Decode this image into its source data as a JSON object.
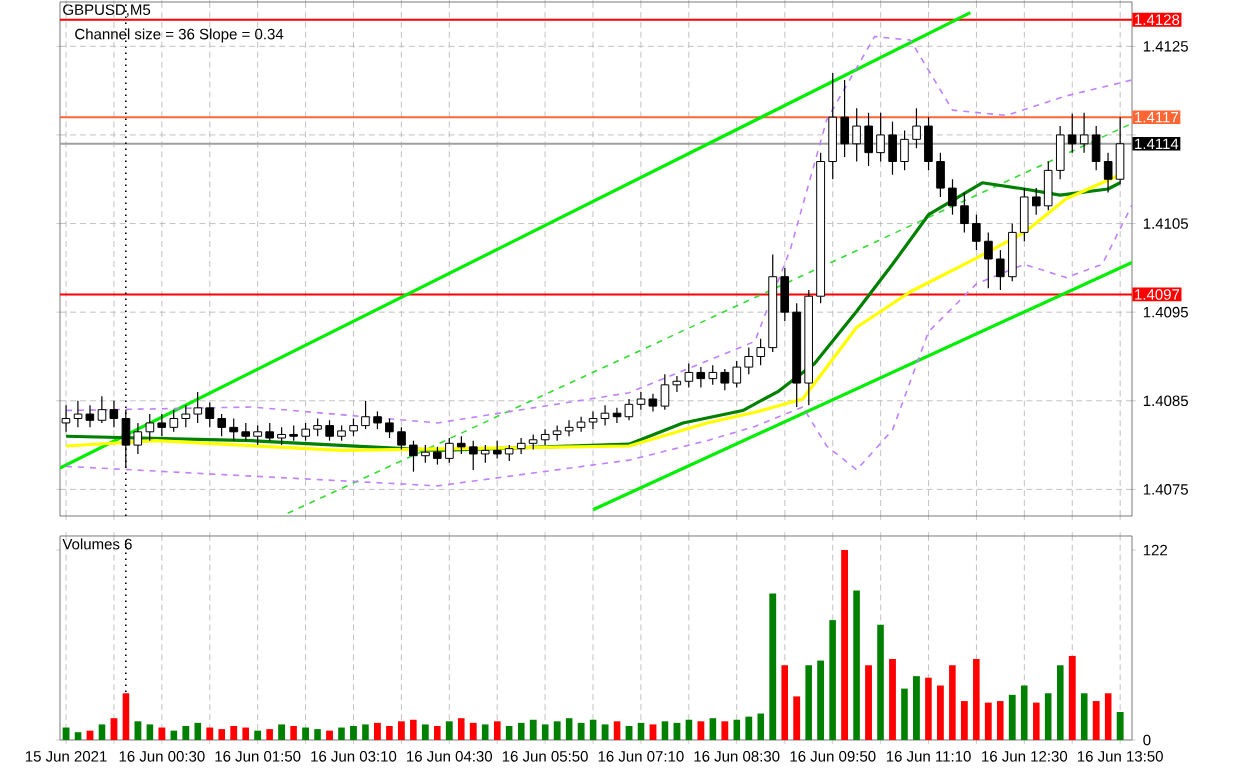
{
  "chart_data": [
    {
      "type": "candlestick",
      "title": "GBPUSD,M5",
      "subtitle": "Channel size = 36 Slope = 0.34",
      "tick_labels": "y",
      "grid": true,
      "xlim": [
        "2021-06-15T23:05",
        "2021-06-16T14:00"
      ],
      "xticks": [
        {
          "value": "2021-06-15T23:10",
          "label": null
        },
        {
          "value": "2021-06-15T23:50",
          "label": null
        },
        {
          "value": "2021-06-16T00:30",
          "label": null
        },
        {
          "value": "2021-06-16T01:10",
          "label": null
        },
        {
          "value": "2021-06-16T01:50",
          "label": null
        },
        {
          "value": "2021-06-16T02:30",
          "label": null
        },
        {
          "value": "2021-06-16T03:10",
          "label": null
        },
        {
          "value": "2021-06-16T03:50",
          "label": null
        },
        {
          "value": "2021-06-16T04:30",
          "label": null
        },
        {
          "value": "2021-06-16T05:10",
          "label": null
        },
        {
          "value": "2021-06-16T05:50",
          "label": null
        },
        {
          "value": "2021-06-16T06:30",
          "label": null
        },
        {
          "value": "2021-06-16T07:10",
          "label": null
        },
        {
          "value": "2021-06-16T07:50",
          "label": null
        },
        {
          "value": "2021-06-16T08:30",
          "label": null
        },
        {
          "value": "2021-06-16T09:10",
          "label": null
        },
        {
          "value": "2021-06-16T09:50",
          "label": null
        },
        {
          "value": "2021-06-16T10:30",
          "label": null
        },
        {
          "value": "2021-06-16T11:10",
          "label": null
        },
        {
          "value": "2021-06-16T11:50",
          "label": null
        },
        {
          "value": "2021-06-16T12:30",
          "label": null
        },
        {
          "value": "2021-06-16T13:10",
          "label": null
        },
        {
          "value": "2021-06-16T13:50",
          "label": null
        }
      ],
      "ylim": [
        1.4072,
        1.413
      ],
      "yticks": [
        1.4075,
        1.4085,
        1.4095,
        1.4105,
        {
          "value": 1.4115,
          "label": null
        },
        1.4125
      ],
      "ref_lines": [
        {
          "axis": "y",
          "value": 1.4128,
          "label": "1.4128",
          "color": "#ff0000"
        },
        {
          "axis": "y",
          "value": 1.4117,
          "label": "1.4117",
          "color": "#ff6633"
        },
        {
          "axis": "y",
          "value": 1.4114,
          "label": "1.4114",
          "color": "#a0a0a0"
        },
        {
          "axis": "y",
          "value": 1.4097,
          "label": "1.4097",
          "color": "#ff0000"
        },
        {
          "axis": "x",
          "value": "2021-06-16T00:00",
          "color": "#000000",
          "line_style": "dotted"
        }
      ],
      "x": [
        "2021-06-15T23:10",
        "2021-06-15T23:20",
        "2021-06-15T23:30",
        "2021-06-15T23:40",
        "2021-06-15T23:50",
        "2021-06-16T00:00",
        "2021-06-16T00:10",
        "2021-06-16T00:20",
        "2021-06-16T00:30",
        "2021-06-16T00:40",
        "2021-06-16T00:50",
        "2021-06-16T01:00",
        "2021-06-16T01:10",
        "2021-06-16T01:20",
        "2021-06-16T01:30",
        "2021-06-16T01:40",
        "2021-06-16T01:50",
        "2021-06-16T02:00",
        "2021-06-16T02:10",
        "2021-06-16T02:20",
        "2021-06-16T02:30",
        "2021-06-16T02:40",
        "2021-06-16T02:50",
        "2021-06-16T03:00",
        "2021-06-16T03:10",
        "2021-06-16T03:20",
        "2021-06-16T03:30",
        "2021-06-16T03:40",
        "2021-06-16T03:50",
        "2021-06-16T04:00",
        "2021-06-16T04:10",
        "2021-06-16T04:20",
        "2021-06-16T04:30",
        "2021-06-16T04:40",
        "2021-06-16T04:50",
        "2021-06-16T05:00",
        "2021-06-16T05:10",
        "2021-06-16T05:20",
        "2021-06-16T05:30",
        "2021-06-16T05:40",
        "2021-06-16T05:50",
        "2021-06-16T06:00",
        "2021-06-16T06:10",
        "2021-06-16T06:20",
        "2021-06-16T06:30",
        "2021-06-16T06:40",
        "2021-06-16T06:50",
        "2021-06-16T07:00",
        "2021-06-16T07:10",
        "2021-06-16T07:20",
        "2021-06-16T07:30",
        "2021-06-16T07:40",
        "2021-06-16T07:50",
        "2021-06-16T08:00",
        "2021-06-16T08:10",
        "2021-06-16T08:20",
        "2021-06-16T08:30",
        "2021-06-16T08:40",
        "2021-06-16T08:50",
        "2021-06-16T09:00",
        "2021-06-16T09:10",
        "2021-06-16T09:20",
        "2021-06-16T09:30",
        "2021-06-16T09:40",
        "2021-06-16T09:50",
        "2021-06-16T10:00",
        "2021-06-16T10:10",
        "2021-06-16T10:20",
        "2021-06-16T10:30",
        "2021-06-16T10:40",
        "2021-06-16T10:50",
        "2021-06-16T11:00",
        "2021-06-16T11:10",
        "2021-06-16T11:20",
        "2021-06-16T11:30",
        "2021-06-16T11:40",
        "2021-06-16T11:50",
        "2021-06-16T12:00",
        "2021-06-16T12:10",
        "2021-06-16T12:20",
        "2021-06-16T12:30",
        "2021-06-16T12:40",
        "2021-06-16T12:50",
        "2021-06-16T13:00",
        "2021-06-16T13:10",
        "2021-06-16T13:20",
        "2021-06-16T13:30",
        "2021-06-16T13:40",
        "2021-06-16T13:50"
      ],
      "ohlc": [
        [
          1.40825,
          1.40845,
          1.40815,
          1.4083
        ],
        [
          1.4083,
          1.4085,
          1.4082,
          1.40835
        ],
        [
          1.40835,
          1.40845,
          1.4082,
          1.40828
        ],
        [
          1.40828,
          1.40855,
          1.40825,
          1.4084
        ],
        [
          1.4084,
          1.4085,
          1.4082,
          1.4083
        ],
        [
          1.4083,
          1.4084,
          1.40775,
          1.408
        ],
        [
          1.408,
          1.40825,
          1.4079,
          1.40815
        ],
        [
          1.40815,
          1.40835,
          1.40805,
          1.40825
        ],
        [
          1.40825,
          1.40835,
          1.4081,
          1.4082
        ],
        [
          1.4082,
          1.4084,
          1.40815,
          1.4083
        ],
        [
          1.4083,
          1.40845,
          1.4082,
          1.40835
        ],
        [
          1.40835,
          1.4086,
          1.40825,
          1.40842
        ],
        [
          1.40842,
          1.40848,
          1.4082,
          1.4083
        ],
        [
          1.4083,
          1.40835,
          1.4081,
          1.4082
        ],
        [
          1.4082,
          1.4083,
          1.40805,
          1.40815
        ],
        [
          1.40815,
          1.40825,
          1.40805,
          1.4081
        ],
        [
          1.4081,
          1.40822,
          1.408,
          1.40815
        ],
        [
          1.40815,
          1.40825,
          1.40805,
          1.40808
        ],
        [
          1.40808,
          1.4082,
          1.408,
          1.40812
        ],
        [
          1.40812,
          1.40822,
          1.40805,
          1.4081
        ],
        [
          1.4081,
          1.40825,
          1.40805,
          1.40818
        ],
        [
          1.40818,
          1.4083,
          1.4081,
          1.40822
        ],
        [
          1.40822,
          1.40828,
          1.40805,
          1.4081
        ],
        [
          1.4081,
          1.40822,
          1.40805,
          1.40816
        ],
        [
          1.40816,
          1.4083,
          1.4081,
          1.40822
        ],
        [
          1.40822,
          1.4085,
          1.40818,
          1.40832
        ],
        [
          1.40832,
          1.40838,
          1.40818,
          1.40825
        ],
        [
          1.40825,
          1.4083,
          1.40808,
          1.40815
        ],
        [
          1.40815,
          1.4082,
          1.40795,
          1.408
        ],
        [
          1.408,
          1.40805,
          1.4077,
          1.40788
        ],
        [
          1.40788,
          1.408,
          1.4078,
          1.40792
        ],
        [
          1.40792,
          1.40798,
          1.40778,
          1.40785
        ],
        [
          1.40785,
          1.40808,
          1.4078,
          1.40802
        ],
        [
          1.40802,
          1.4081,
          1.4079,
          1.40798
        ],
        [
          1.40798,
          1.40805,
          1.40772,
          1.4079
        ],
        [
          1.4079,
          1.408,
          1.4078,
          1.40794
        ],
        [
          1.40794,
          1.40805,
          1.40785,
          1.4079
        ],
        [
          1.4079,
          1.408,
          1.40782,
          1.40796
        ],
        [
          1.40796,
          1.40808,
          1.4079,
          1.40802
        ],
        [
          1.40802,
          1.40812,
          1.40795,
          1.40806
        ],
        [
          1.40806,
          1.40818,
          1.408,
          1.40812
        ],
        [
          1.40812,
          1.40822,
          1.40805,
          1.40816
        ],
        [
          1.40816,
          1.40828,
          1.4081,
          1.4082
        ],
        [
          1.4082,
          1.40832,
          1.40815,
          1.40826
        ],
        [
          1.40826,
          1.40838,
          1.40818,
          1.4083
        ],
        [
          1.4083,
          1.40845,
          1.40822,
          1.40836
        ],
        [
          1.40836,
          1.40842,
          1.40825,
          1.40832
        ],
        [
          1.40832,
          1.40852,
          1.40828,
          1.40846
        ],
        [
          1.40846,
          1.4086,
          1.4084,
          1.40852
        ],
        [
          1.40852,
          1.40858,
          1.40838,
          1.40844
        ],
        [
          1.40844,
          1.4088,
          1.4084,
          1.40868
        ],
        [
          1.40868,
          1.40878,
          1.4086,
          1.40872
        ],
        [
          1.40872,
          1.40892,
          1.40865,
          1.40882
        ],
        [
          1.40882,
          1.40888,
          1.40865,
          1.40875
        ],
        [
          1.40875,
          1.4089,
          1.40868,
          1.40882
        ],
        [
          1.40882,
          1.40886,
          1.40862,
          1.4087
        ],
        [
          1.4087,
          1.40895,
          1.40865,
          1.40888
        ],
        [
          1.40888,
          1.4091,
          1.4088,
          1.409
        ],
        [
          1.409,
          1.4092,
          1.4089,
          1.4091
        ],
        [
          1.4091,
          1.41015,
          1.40905,
          1.4099
        ],
        [
          1.4099,
          1.41,
          1.4094,
          1.4095
        ],
        [
          1.4095,
          1.4096,
          1.40843,
          1.4087
        ],
        [
          1.4087,
          1.40975,
          1.40845,
          1.40968
        ],
        [
          1.40968,
          1.4113,
          1.4096,
          1.4112
        ],
        [
          1.4112,
          1.4122,
          1.411,
          1.4117
        ],
        [
          1.4117,
          1.41212,
          1.41125,
          1.4114
        ],
        [
          1.4114,
          1.4118,
          1.4112,
          1.4116
        ],
        [
          1.4116,
          1.41175,
          1.41115,
          1.4113
        ],
        [
          1.4113,
          1.41175,
          1.4112,
          1.4115
        ],
        [
          1.4115,
          1.41165,
          1.41105,
          1.4112
        ],
        [
          1.4112,
          1.41155,
          1.4111,
          1.41145
        ],
        [
          1.41145,
          1.4118,
          1.41135,
          1.4116
        ],
        [
          1.4116,
          1.4117,
          1.4111,
          1.4112
        ],
        [
          1.4112,
          1.4113,
          1.4108,
          1.4109
        ],
        [
          1.4109,
          1.411,
          1.4106,
          1.4107
        ],
        [
          1.4107,
          1.41085,
          1.4104,
          1.4105
        ],
        [
          1.4105,
          1.4106,
          1.4102,
          1.4103
        ],
        [
          1.4103,
          1.4104,
          1.40977,
          1.4101
        ],
        [
          1.4101,
          1.4102,
          1.40975,
          1.4099
        ],
        [
          1.4099,
          1.4105,
          1.40985,
          1.4104
        ],
        [
          1.4104,
          1.4109,
          1.4103,
          1.4108
        ],
        [
          1.4108,
          1.4109,
          1.4106,
          1.4107
        ],
        [
          1.4107,
          1.4112,
          1.41065,
          1.4111
        ],
        [
          1.4111,
          1.4116,
          1.411,
          1.4115
        ],
        [
          1.4115,
          1.41174,
          1.4113,
          1.4114
        ],
        [
          1.4114,
          1.41175,
          1.4113,
          1.4115
        ],
        [
          1.4115,
          1.4116,
          1.4111,
          1.4112
        ],
        [
          1.4112,
          1.4113,
          1.41085,
          1.411
        ],
        [
          1.411,
          1.4117,
          1.41095,
          1.4114
        ]
      ],
      "series": [
        {
          "type": "line",
          "color": "#00ee00",
          "line_style": "solid",
          "x": [
            "2021-06-15T23:05",
            "2021-06-16T11:45"
          ],
          "values": [
            1.40774,
            1.41288
          ]
        },
        {
          "type": "line",
          "color": "#00ee00",
          "line_style": "solid",
          "x": [
            "2021-06-16T06:30",
            "2021-06-16T14:00"
          ],
          "values": [
            1.40727,
            1.41006
          ]
        },
        {
          "type": "line",
          "color": "#33dd33",
          "line_style": "dashed",
          "x": [
            "2021-06-16T02:15",
            "2021-06-16T14:00"
          ],
          "values": [
            1.40723,
            1.41163
          ]
        },
        {
          "type": "line",
          "color": "#c080ff",
          "line_style": "dashed",
          "x": [
            "2021-06-15T23:10",
            "2021-06-16T01:45",
            "2021-06-16T04:20",
            "2021-06-16T07:00",
            "2021-06-16T08:05",
            "2021-06-16T08:45",
            "2021-06-16T09:15",
            "2021-06-16T09:45",
            "2021-06-16T10:25",
            "2021-06-16T10:55",
            "2021-06-16T11:30",
            "2021-06-16T12:15",
            "2021-06-16T13:05",
            "2021-06-16T14:00"
          ],
          "values": [
            1.40839,
            1.40843,
            1.40825,
            1.40859,
            1.40895,
            1.40917,
            1.41022,
            1.41167,
            1.41261,
            1.41257,
            1.41178,
            1.41172,
            1.41194,
            1.41212
          ]
        },
        {
          "type": "line",
          "color": "#c080ff",
          "line_style": "dashed",
          "x": [
            "2021-06-15T23:10",
            "2021-06-16T01:45",
            "2021-06-16T04:20",
            "2021-06-16T07:00",
            "2021-06-16T08:05",
            "2021-06-16T08:45",
            "2021-06-16T09:25",
            "2021-06-16T09:45",
            "2021-06-16T10:10",
            "2021-06-16T10:40",
            "2021-06-16T11:10",
            "2021-06-16T11:50",
            "2021-06-16T12:30",
            "2021-06-16T13:05",
            "2021-06-16T13:35",
            "2021-06-16T14:00"
          ],
          "values": [
            1.40776,
            1.40765,
            1.40754,
            1.40783,
            1.40805,
            1.40821,
            1.40843,
            1.40799,
            1.40772,
            1.40817,
            1.40928,
            1.40982,
            1.41004,
            1.40989,
            1.41004,
            1.41071
          ]
        },
        {
          "type": "line",
          "color": "#008000",
          "line_style": "solid",
          "x": [
            "2021-06-15T23:10",
            "2021-06-16T01:45",
            "2021-06-16T04:20",
            "2021-06-16T07:00",
            "2021-06-16T07:45",
            "2021-06-16T08:35",
            "2021-06-16T09:05",
            "2021-06-16T09:35",
            "2021-06-16T10:10",
            "2021-06-16T10:40",
            "2021-06-16T11:10",
            "2021-06-16T11:55",
            "2021-06-16T12:30",
            "2021-06-16T13:00",
            "2021-06-16T13:40",
            "2021-06-16T13:50"
          ],
          "values": [
            1.4081,
            1.40805,
            1.40794,
            1.40801,
            1.40825,
            1.40839,
            1.40861,
            1.40892,
            1.40951,
            1.41004,
            1.4106,
            1.41096,
            1.41089,
            1.41082,
            1.41089,
            1.41096
          ]
        },
        {
          "type": "line",
          "color": "#ffff00",
          "line_style": "solid",
          "x": [
            "2021-06-15T23:10",
            "2021-06-16T00:25",
            "2021-06-16T03:00",
            "2021-06-16T07:00",
            "2021-06-16T08:05",
            "2021-06-16T08:45",
            "2021-06-16T09:25",
            "2021-06-16T10:10",
            "2021-06-16T10:55",
            "2021-06-16T11:50",
            "2021-06-16T12:30",
            "2021-06-16T13:05",
            "2021-06-16T13:35",
            "2021-06-16T13:50"
          ],
          "values": [
            1.40799,
            1.40805,
            1.40794,
            1.40799,
            1.40825,
            1.40837,
            1.40852,
            1.40933,
            1.40973,
            1.41011,
            1.4104,
            1.41078,
            1.41096,
            1.41105
          ]
        }
      ]
    },
    {
      "type": "bar",
      "title": "Volumes 6",
      "grid": "x",
      "xlim": [
        "2021-06-15T23:05",
        "2021-06-16T14:00"
      ],
      "xticks": [
        {
          "value": "2021-06-15T23:10",
          "label": "15 Jun 2021"
        },
        {
          "value": "2021-06-15T23:50",
          "label": null
        },
        {
          "value": "2021-06-16T00:30",
          "label": "16 Jun 00:30"
        },
        {
          "value": "2021-06-16T01:10",
          "label": null
        },
        {
          "value": "2021-06-16T01:50",
          "label": "16 Jun 01:50"
        },
        {
          "value": "2021-06-16T02:30",
          "label": null
        },
        {
          "value": "2021-06-16T03:10",
          "label": "16 Jun 03:10"
        },
        {
          "value": "2021-06-16T03:50",
          "label": null
        },
        {
          "value": "2021-06-16T04:30",
          "label": "16 Jun 04:30"
        },
        {
          "value": "2021-06-16T05:10",
          "label": null
        },
        {
          "value": "2021-06-16T05:50",
          "label": "16 Jun 05:50"
        },
        {
          "value": "2021-06-16T06:30",
          "label": null
        },
        {
          "value": "2021-06-16T07:10",
          "label": "16 Jun 07:10"
        },
        {
          "value": "2021-06-16T07:50",
          "label": null
        },
        {
          "value": "2021-06-16T08:30",
          "label": "16 Jun 08:30"
        },
        {
          "value": "2021-06-16T09:10",
          "label": null
        },
        {
          "value": "2021-06-16T09:50",
          "label": "16 Jun 09:50"
        },
        {
          "value": "2021-06-16T10:30",
          "label": null
        },
        {
          "value": "2021-06-16T11:10",
          "label": "16 Jun 11:10"
        },
        {
          "value": "2021-06-16T11:50",
          "label": null
        },
        {
          "value": "2021-06-16T12:30",
          "label": "16 Jun 12:30"
        },
        {
          "value": "2021-06-16T13:10",
          "label": null
        },
        {
          "value": "2021-06-16T13:50",
          "label": "16 Jun 13:50"
        }
      ],
      "ylim": [
        0,
        131
      ],
      "yticks": [
        0,
        122
      ],
      "ref_lines": [
        {
          "axis": "x",
          "value": "2021-06-16T00:00",
          "color": "#000000",
          "line_style": "dotted"
        }
      ],
      "x": [
        "2021-06-15T23:10",
        "2021-06-15T23:20",
        "2021-06-15T23:30",
        "2021-06-15T23:40",
        "2021-06-15T23:50",
        "2021-06-16T00:00",
        "2021-06-16T00:10",
        "2021-06-16T00:20",
        "2021-06-16T00:30",
        "2021-06-16T00:40",
        "2021-06-16T00:50",
        "2021-06-16T01:00",
        "2021-06-16T01:10",
        "2021-06-16T01:20",
        "2021-06-16T01:30",
        "2021-06-16T01:40",
        "2021-06-16T01:50",
        "2021-06-16T02:00",
        "2021-06-16T02:10",
        "2021-06-16T02:20",
        "2021-06-16T02:30",
        "2021-06-16T02:40",
        "2021-06-16T02:50",
        "2021-06-16T03:00",
        "2021-06-16T03:10",
        "2021-06-16T03:20",
        "2021-06-16T03:30",
        "2021-06-16T03:40",
        "2021-06-16T03:50",
        "2021-06-16T04:00",
        "2021-06-16T04:10",
        "2021-06-16T04:20",
        "2021-06-16T04:30",
        "2021-06-16T04:40",
        "2021-06-16T04:50",
        "2021-06-16T05:00",
        "2021-06-16T05:10",
        "2021-06-16T05:20",
        "2021-06-16T05:30",
        "2021-06-16T05:40",
        "2021-06-16T05:50",
        "2021-06-16T06:00",
        "2021-06-16T06:10",
        "2021-06-16T06:20",
        "2021-06-16T06:30",
        "2021-06-16T06:40",
        "2021-06-16T06:50",
        "2021-06-16T07:00",
        "2021-06-16T07:10",
        "2021-06-16T07:20",
        "2021-06-16T07:30",
        "2021-06-16T07:40",
        "2021-06-16T07:50",
        "2021-06-16T08:00",
        "2021-06-16T08:10",
        "2021-06-16T08:20",
        "2021-06-16T08:30",
        "2021-06-16T08:40",
        "2021-06-16T08:50",
        "2021-06-16T09:00",
        "2021-06-16T09:10",
        "2021-06-16T09:20",
        "2021-06-16T09:30",
        "2021-06-16T09:40",
        "2021-06-16T09:50",
        "2021-06-16T10:00",
        "2021-06-16T10:10",
        "2021-06-16T10:20",
        "2021-06-16T10:30",
        "2021-06-16T10:40",
        "2021-06-16T10:50",
        "2021-06-16T11:00",
        "2021-06-16T11:10",
        "2021-06-16T11:20",
        "2021-06-16T11:30",
        "2021-06-16T11:40",
        "2021-06-16T11:50",
        "2021-06-16T12:00",
        "2021-06-16T12:10",
        "2021-06-16T12:20",
        "2021-06-16T12:30",
        "2021-06-16T12:40",
        "2021-06-16T12:50",
        "2021-06-16T13:00",
        "2021-06-16T13:10",
        "2021-06-16T13:20",
        "2021-06-16T13:30",
        "2021-06-16T13:40",
        "2021-06-16T13:50"
      ],
      "values": [
        8,
        5,
        6,
        10,
        14,
        30,
        12,
        10,
        8,
        6,
        9,
        11,
        8,
        7,
        9,
        8,
        6,
        7,
        10,
        9,
        8,
        7,
        6,
        8,
        9,
        10,
        11,
        9,
        12,
        13,
        10,
        9,
        12,
        14,
        11,
        10,
        12,
        9,
        11,
        13,
        10,
        12,
        14,
        11,
        13,
        10,
        12,
        9,
        11,
        10,
        12,
        11,
        13,
        12,
        14,
        12,
        13,
        15,
        17,
        94,
        48,
        28,
        48,
        51,
        77,
        122,
        96,
        48,
        74,
        52,
        33,
        41,
        40,
        35,
        48,
        25,
        52,
        24,
        25,
        29,
        35,
        24,
        30,
        48,
        54,
        30,
        25,
        30,
        18
      ],
      "colors": [
        "#008000",
        "#008000",
        "#ff0000",
        "#008000",
        "#ff0000",
        "#ff0000",
        "#008000",
        "#008000",
        "#ff0000",
        "#008000",
        "#008000",
        "#008000",
        "#ff0000",
        "#ff0000",
        "#ff0000",
        "#ff0000",
        "#008000",
        "#ff0000",
        "#008000",
        "#ff0000",
        "#008000",
        "#008000",
        "#ff0000",
        "#008000",
        "#008000",
        "#008000",
        "#ff0000",
        "#ff0000",
        "#ff0000",
        "#ff0000",
        "#008000",
        "#ff0000",
        "#008000",
        "#ff0000",
        "#ff0000",
        "#008000",
        "#ff0000",
        "#008000",
        "#008000",
        "#008000",
        "#008000",
        "#008000",
        "#008000",
        "#008000",
        "#008000",
        "#008000",
        "#ff0000",
        "#008000",
        "#008000",
        "#ff0000",
        "#008000",
        "#008000",
        "#008000",
        "#ff0000",
        "#008000",
        "#ff0000",
        "#008000",
        "#008000",
        "#008000",
        "#008000",
        "#ff0000",
        "#ff0000",
        "#008000",
        "#008000",
        "#008000",
        "#ff0000",
        "#008000",
        "#ff0000",
        "#008000",
        "#ff0000",
        "#008000",
        "#008000",
        "#ff0000",
        "#ff0000",
        "#ff0000",
        "#ff0000",
        "#ff0000",
        "#ff0000",
        "#ff0000",
        "#008000",
        "#008000",
        "#ff0000",
        "#008000",
        "#008000",
        "#ff0000",
        "#008000",
        "#ff0000",
        "#ff0000",
        "#008000"
      ]
    }
  ]
}
